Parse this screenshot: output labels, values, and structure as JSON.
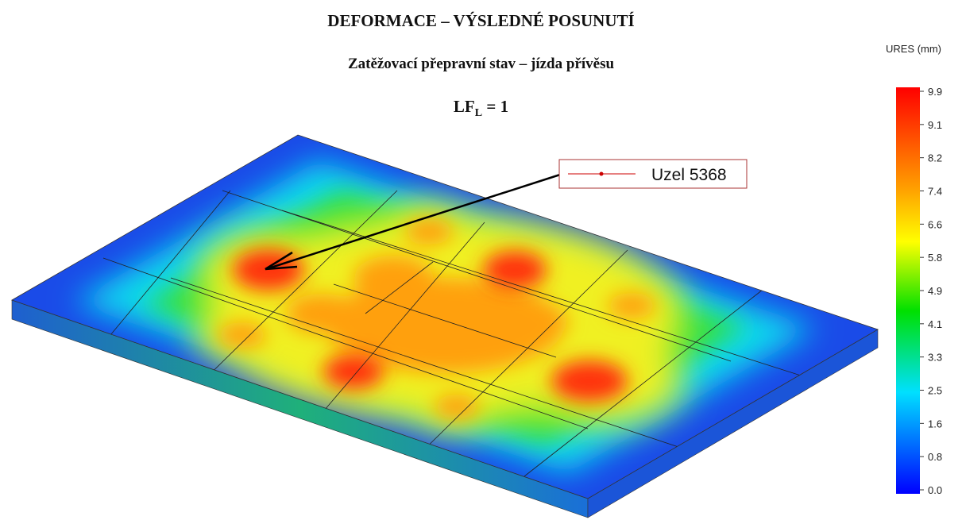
{
  "header": {
    "title": "DEFORMACE – VÝSLEDNÉ POSUNUTÍ",
    "subtitle": "Zatěžovací přepravní stav – jízda přívěsu",
    "load_factor": {
      "main": "LF",
      "sub": "L",
      "rest": "= 1"
    }
  },
  "callout": {
    "label": "Uzel 5368"
  },
  "legend": {
    "title": "URES (mm)",
    "ticks": [
      "9.9",
      "9.1",
      "8.2",
      "7.4",
      "6.6",
      "5.8",
      "4.9",
      "4.1",
      "3.3",
      "2.5",
      "1.6",
      "0.8",
      "0.0"
    ]
  }
}
